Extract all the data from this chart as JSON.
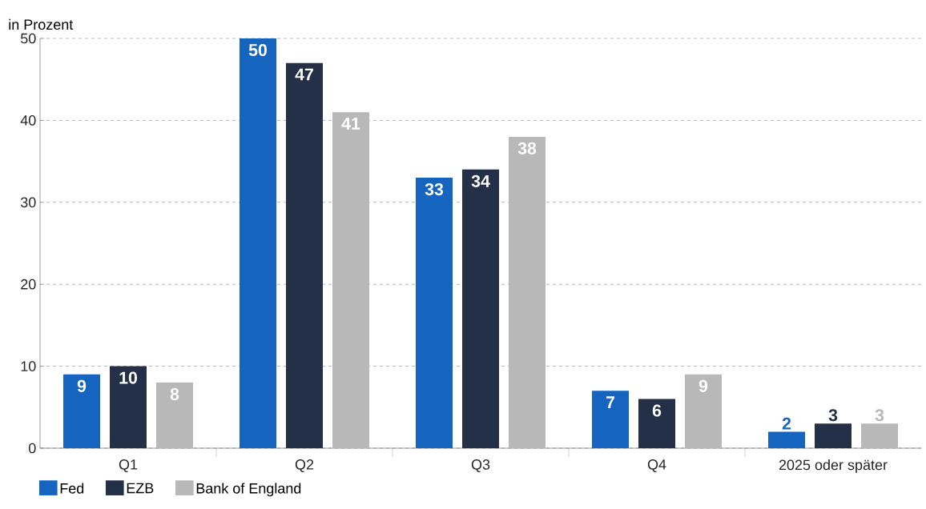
{
  "chart_data": {
    "type": "bar",
    "ylabel": "in Prozent",
    "categories": [
      "Q1",
      "Q2",
      "Q3",
      "Q4",
      "2025 oder später"
    ],
    "series": [
      {
        "name": "Fed",
        "color": "#1565c0",
        "values": [
          9,
          50,
          33,
          7,
          2
        ]
      },
      {
        "name": "EZB",
        "color": "#233047",
        "values": [
          10,
          47,
          34,
          6,
          3
        ]
      },
      {
        "name": "Bank of England",
        "color": "#b8b8b8",
        "values": [
          8,
          41,
          38,
          9,
          3
        ]
      }
    ],
    "ylim": [
      0,
      50
    ],
    "yticks": [
      0,
      10,
      20,
      30,
      40,
      50
    ],
    "grid": "y",
    "legend": "bottom left",
    "data_labels": true
  }
}
